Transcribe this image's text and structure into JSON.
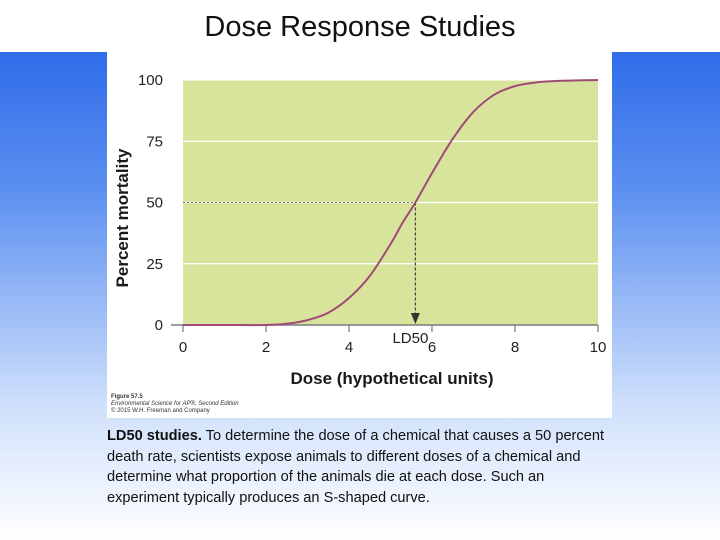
{
  "slide": {
    "title": "Dose Response Studies"
  },
  "figure": {
    "credit_figure": "Figure 57.5",
    "credit_book": "Environmental Science for AP®, Second Edition",
    "credit_publisher": "© 2015 W.H. Freeman and Company"
  },
  "caption": {
    "lead": "LD50 studies.",
    "body": " To determine the dose of a chemical that causes a 50 percent death rate, scientists expose animals to different doses of a chemical and determine what proportion of the animals die at each dose. Such an experiment typically produces an S-shaped curve."
  },
  "colors": {
    "plot_background": "#d8e49c",
    "curve": "#a04a78",
    "grid": "#ffffff",
    "slide_gradient_top": "#1f5fe6"
  },
  "chart_data": {
    "type": "line",
    "title": "",
    "xlabel": "Dose (hypothetical units)",
    "ylabel": "Percent mortality",
    "xlim": [
      0,
      10
    ],
    "ylim": [
      0,
      100
    ],
    "x_ticks": [
      0,
      2,
      4,
      6,
      8,
      10
    ],
    "y_ticks": [
      0,
      25,
      50,
      75,
      100
    ],
    "grid": "horizontal",
    "series": [
      {
        "x": [
          0,
          1,
          2,
          2.5,
          3,
          3.5,
          4,
          4.5,
          5,
          5.3,
          5.6,
          6,
          6.5,
          7,
          7.5,
          8,
          8.5,
          9,
          10
        ],
        "values": [
          0,
          0,
          0,
          0.5,
          2,
          5,
          11,
          20,
          33,
          42,
          50,
          62,
          76,
          87,
          94,
          97.5,
          99,
          99.6,
          100
        ]
      }
    ],
    "annotation": {
      "label": "LD50",
      "x": 5.6,
      "y": 50
    }
  }
}
